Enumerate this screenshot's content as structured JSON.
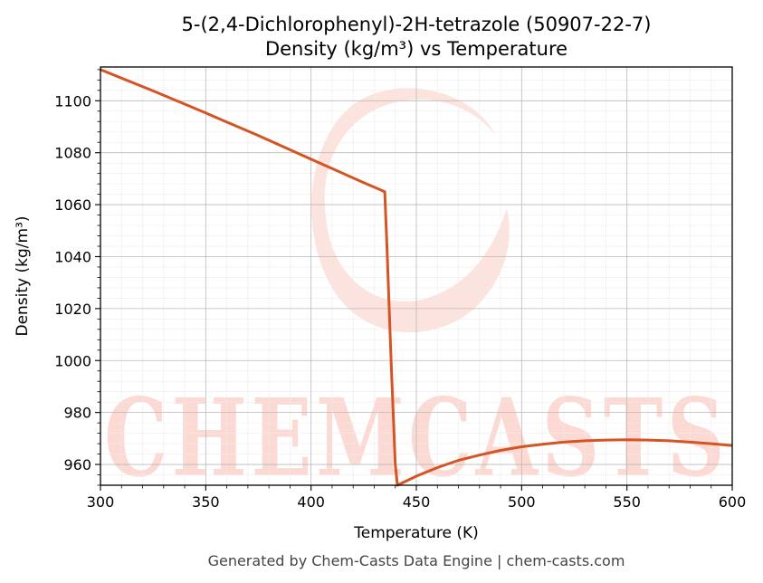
{
  "chart_data": {
    "type": "line",
    "title": "5-(2,4-Dichlorophenyl)-2H-tetrazole (50907-22-7)",
    "subtitle": "Density (kg/m³) vs Temperature",
    "xlabel": "Temperature (K)",
    "ylabel": "Density (kg/m³)",
    "xlim": [
      300,
      600
    ],
    "ylim": [
      952,
      1113
    ],
    "xticks": [
      300,
      350,
      400,
      450,
      500,
      550,
      600
    ],
    "yticks": [
      960,
      980,
      1000,
      1020,
      1040,
      1060,
      1080,
      1100
    ],
    "grid": true,
    "line_color": "#d45424",
    "series": [
      {
        "x": [
          300,
          325,
          350,
          375,
          400,
          425,
          435,
          436,
          438,
          440,
          441,
          450,
          460,
          470,
          480,
          490,
          500,
          510,
          520,
          530,
          540,
          550,
          560,
          570,
          580,
          590,
          600
        ],
        "values": [
          1112,
          1103.8,
          1095.3,
          1086.6,
          1077.5,
          1068.5,
          1065,
          1045,
          1000,
          960,
          952,
          955.5,
          958.8,
          961.6,
          963.6,
          965.4,
          966.8,
          967.8,
          968.6,
          969.1,
          969.4,
          969.5,
          969.4,
          969.1,
          968.6,
          968.0,
          967.3
        ]
      }
    ]
  },
  "watermark": {
    "text": "CHEMCASTS"
  },
  "footer": "Generated by Chem-Casts Data Engine | chem-casts.com"
}
